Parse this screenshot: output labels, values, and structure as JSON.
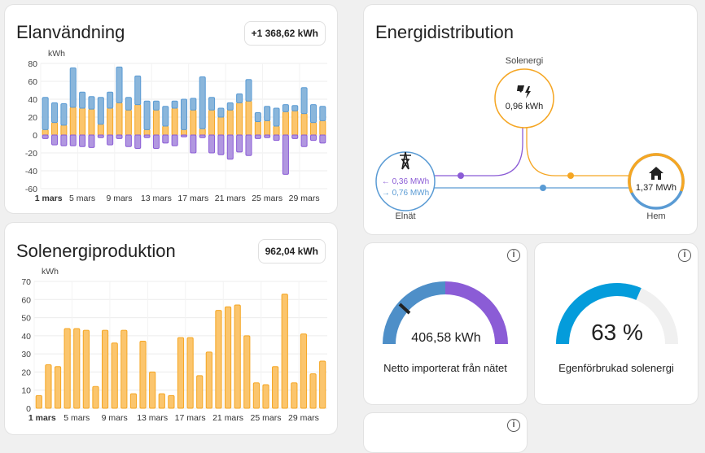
{
  "consumption": {
    "title": "Elanvändning",
    "total": "+1 368,62 kWh",
    "unit": "kWh"
  },
  "solar": {
    "title": "Solenergiproduktion",
    "total": "962,04 kWh",
    "unit": "kWh"
  },
  "distribution": {
    "title": "Energidistribution",
    "solar_label": "Solenergi",
    "solar_value": "0,96 kWh",
    "grid_label": "Elnät",
    "grid_in": "← 0,36 MWh",
    "grid_out": "→ 0,76 MWh",
    "home_label": "Hem",
    "home_value": "1,37 MWh"
  },
  "gauge_net": {
    "value": "406,58 kWh",
    "label": "Netto importerat från nätet"
  },
  "gauge_self": {
    "value": "63 %",
    "percent": 63,
    "label": "Egenförbrukad solenergi"
  },
  "colors": {
    "grid_import": "#8ab6db",
    "solar": "#fbc56d",
    "grid_export": "#b197e0",
    "solar_stroke": "#f5a623",
    "grid_stroke": "#5a9bd4",
    "export_stroke": "#8b5cd6",
    "self_gauge": "#049cdb"
  },
  "chart_data": [
    {
      "type": "bar",
      "ylabel": "kWh",
      "ylim": [
        -60,
        80
      ],
      "yticks": [
        80,
        60,
        40,
        20,
        0,
        -20,
        -40,
        -60
      ],
      "xticks": [
        "1 mars",
        "5 mars",
        "9 mars",
        "13 mars",
        "17 mars",
        "21 mars",
        "25 mars",
        "29 mars"
      ],
      "days": [
        1,
        2,
        3,
        4,
        5,
        6,
        7,
        8,
        9,
        10,
        11,
        12,
        13,
        14,
        15,
        16,
        17,
        18,
        19,
        20,
        21,
        22,
        23,
        24,
        25,
        26,
        27,
        28,
        29,
        30,
        31
      ],
      "series": [
        {
          "values": [
            6,
            14,
            11,
            31,
            30,
            29,
            12,
            30,
            36,
            28,
            34,
            6,
            28,
            10,
            30,
            6,
            28,
            7,
            28,
            20,
            28,
            36,
            38,
            15,
            16,
            10,
            26,
            27,
            24,
            14,
            16
          ]
        },
        {
          "values": [
            36,
            22,
            24,
            44,
            18,
            14,
            30,
            18,
            40,
            14,
            32,
            32,
            10,
            22,
            8,
            34,
            13,
            58,
            14,
            10,
            8,
            10,
            24,
            10,
            16,
            20,
            8,
            6,
            29,
            20,
            16
          ]
        },
        {
          "values": [
            -4,
            -11,
            -12,
            -12,
            -13,
            -14,
            -3,
            -11,
            -4,
            -13,
            -15,
            -3,
            -15,
            -9,
            -12,
            -2,
            -20,
            -3,
            -20,
            -22,
            -27,
            -19,
            -23,
            -4,
            -3,
            -6,
            -44,
            -4,
            -13,
            -6,
            -9
          ]
        }
      ]
    },
    {
      "type": "bar",
      "ylabel": "kWh",
      "ylim": [
        0,
        70
      ],
      "yticks": [
        70,
        60,
        50,
        40,
        30,
        20,
        10,
        0
      ],
      "xticks": [
        "1 mars",
        "5 mars",
        "9 mars",
        "13 mars",
        "17 mars",
        "21 mars",
        "25 mars",
        "29 mars"
      ],
      "days": [
        1,
        2,
        3,
        4,
        5,
        6,
        7,
        8,
        9,
        10,
        11,
        12,
        13,
        14,
        15,
        16,
        17,
        18,
        19,
        20,
        21,
        22,
        23,
        24,
        25,
        26,
        27,
        28,
        29,
        30,
        31
      ],
      "series": [
        {
          "values": [
            7,
            24,
            23,
            44,
            44,
            43,
            12,
            43,
            36,
            43,
            8,
            37,
            20,
            8,
            7,
            39,
            39,
            18,
            31,
            54,
            56,
            57,
            40,
            14,
            13,
            23,
            63,
            14,
            41,
            19,
            26
          ]
        }
      ]
    }
  ]
}
